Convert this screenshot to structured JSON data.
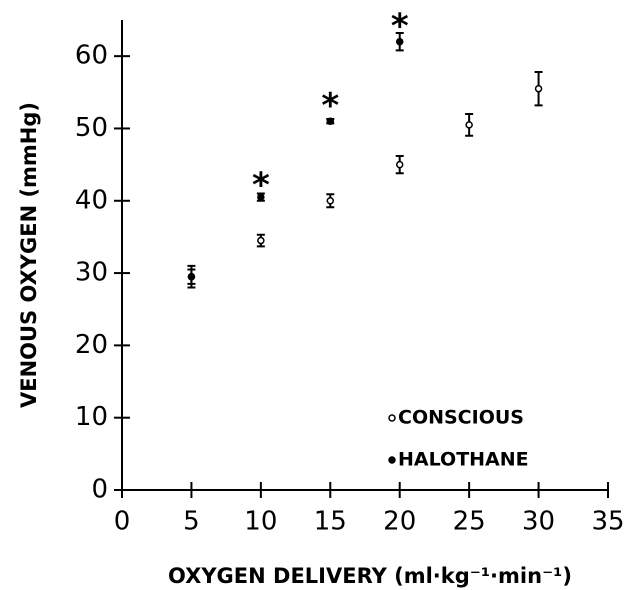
{
  "chart_data": {
    "type": "scatter",
    "xlabel": "OXYGEN DELIVERY (ml·kg⁻¹·min⁻¹)",
    "ylabel": "VENOUS OXYGEN (mmHg)",
    "xlim": [
      0,
      35
    ],
    "xticks": [
      0,
      5,
      10,
      15,
      20,
      25,
      30,
      35
    ],
    "ylim": [
      0,
      65
    ],
    "yticks": [
      0,
      10,
      20,
      30,
      40,
      50,
      60
    ],
    "legend": "lower right",
    "series": [
      {
        "name": "CONSCIOUS",
        "color": "#000000",
        "marker": "open",
        "x": [
          5,
          10,
          15,
          20,
          25,
          30
        ],
        "values": [
          29.5,
          34.5,
          40,
          45,
          50.5,
          55.5
        ],
        "errors": [
          1.5,
          0.8,
          0.9,
          1.2,
          1.5,
          2.3
        ]
      },
      {
        "name": "HALOTHANE",
        "color": "#000000",
        "marker": "filled",
        "x": [
          5,
          10,
          15,
          20
        ],
        "values": [
          29.5,
          40.5,
          51,
          62
        ],
        "errors": [
          1,
          0.5,
          0.3,
          1.2
        ]
      }
    ],
    "annotations": [
      {
        "text": "*",
        "x": 10,
        "y": 43
      },
      {
        "text": "*",
        "x": 15,
        "y": 54
      },
      {
        "text": "*",
        "x": 20,
        "y": 65
      }
    ]
  }
}
